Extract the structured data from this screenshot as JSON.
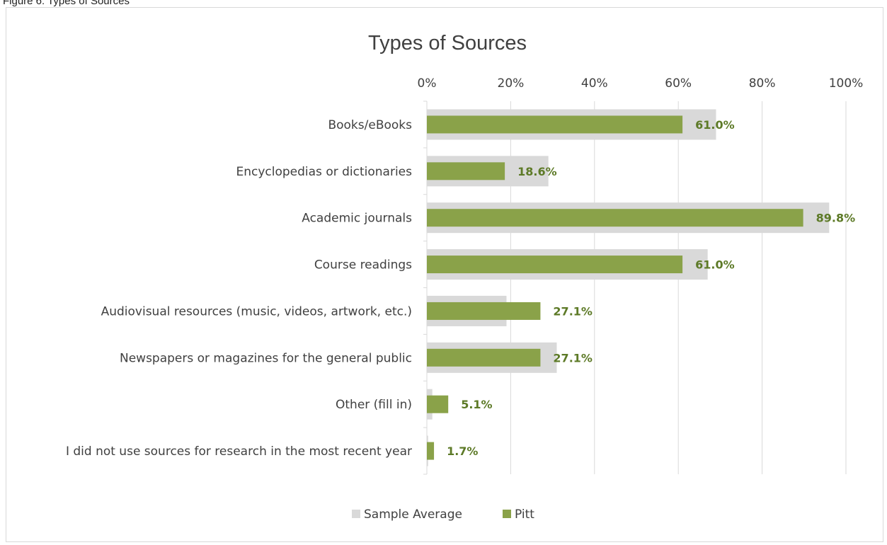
{
  "caption": "Figure 6: Types of Sources",
  "colors": {
    "sample_average": "#d9d9d9",
    "pitt": "#8aa249",
    "data_label": "#5d7a27",
    "gridline": "#d9d9d9",
    "text": "#404040"
  },
  "chart_data": {
    "type": "bar",
    "orientation": "horizontal",
    "title": "Types of Sources",
    "xlabel": "",
    "ylabel": "",
    "xlim": [
      0,
      100
    ],
    "x_ticks": [
      "0%",
      "20%",
      "40%",
      "60%",
      "80%",
      "100%"
    ],
    "x_axis_position": "top",
    "grid": true,
    "legend": "bottom",
    "categories": [
      "Books/eBooks",
      "Encyclopedias or dictionaries",
      "Academic journals",
      "Course readings",
      "Audiovisual resources (music, videos, artwork, etc.)",
      "Newspapers or magazines for the general public",
      "Other (fill in)",
      "I did not use sources for research in the most recent year"
    ],
    "series": [
      {
        "name": "Sample Average",
        "color": "#d9d9d9",
        "values": [
          69,
          29,
          96,
          67,
          19,
          31,
          1.3,
          0.3
        ]
      },
      {
        "name": "Pitt",
        "color": "#8aa249",
        "values": [
          61.0,
          18.6,
          89.8,
          61.0,
          27.1,
          27.1,
          5.1,
          1.7
        ],
        "data_labels": [
          "61.0%",
          "18.6%",
          "89.8%",
          "61.0%",
          "27.1%",
          "27.1%",
          "5.1%",
          "1.7%"
        ]
      }
    ]
  }
}
